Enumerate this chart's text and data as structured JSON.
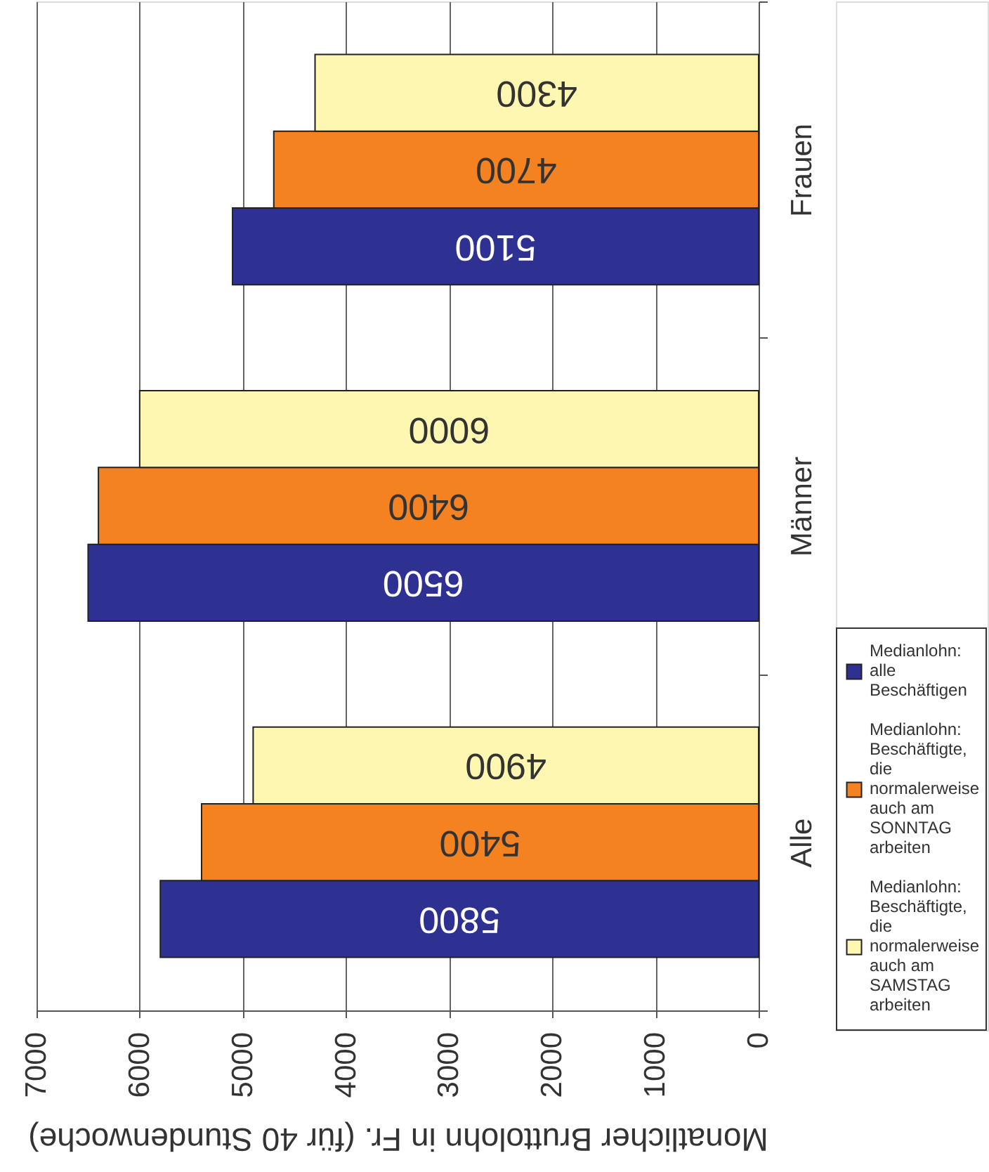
{
  "chart_data": {
    "type": "bar",
    "orientation": "horizontal",
    "categories": [
      "Frauen",
      "Männer",
      "Alle"
    ],
    "series": [
      {
        "name": "Medianlohn: alle Beschäftigen",
        "color": "#2e3192",
        "values": [
          5100,
          6500,
          5800
        ]
      },
      {
        "name": "Medianlohn: Beschäftigte, die normalerweise auch am SONNTAG arbeiten",
        "color": "#f58220",
        "values": [
          4700,
          6400,
          5400
        ]
      },
      {
        "name": "Medianlohn: Beschäftigte, die normalerweise auch am SAMSTAG arbeiten",
        "color": "#fef7b1",
        "values": [
          4300,
          6000,
          4900
        ]
      }
    ],
    "xlabel": "Monatlicher Bruttolohn in Fr. (für 40 Stundenwoche)",
    "xlim": [
      7000,
      0
    ],
    "xticks": [
      0,
      1000,
      2000,
      3000,
      4000,
      5000,
      6000,
      7000
    ],
    "grid": "x",
    "legend": "right",
    "data_labels": true
  }
}
